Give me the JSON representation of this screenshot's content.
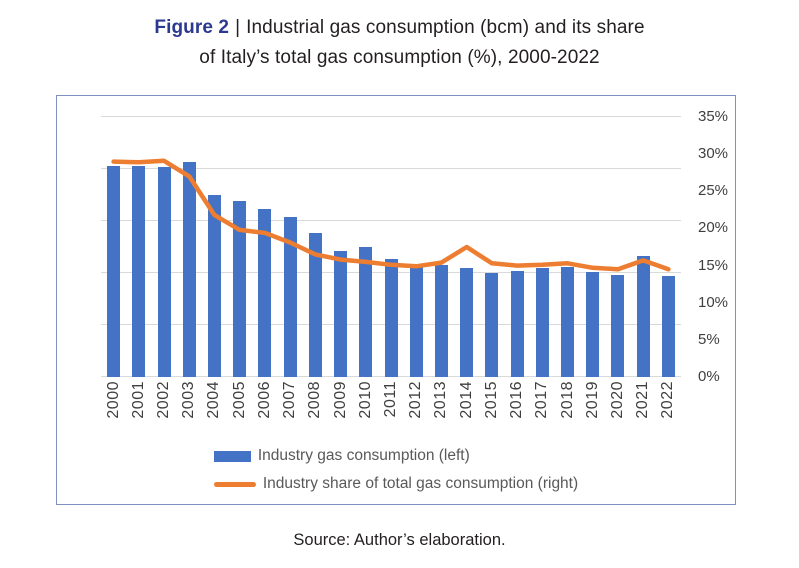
{
  "figure": {
    "label": "Figure 2",
    "separator": "|",
    "title_line1": "Industrial gas consumption (bcm) and its share",
    "title_line2": "of Italy’s total gas consumption (%), 2000-2022"
  },
  "source_note": "Source: Author’s elaboration.",
  "colors": {
    "bar": "#4472C4",
    "line": "#ED7D31",
    "figure_label": "#2B3990",
    "axis_text": "#3F3F3F",
    "legend_text": "#595959",
    "gridline": "#D9D9D9",
    "chart_border": "#8090C0"
  },
  "chart_data": {
    "type": "bar",
    "subtype": "combo-bar-line-dual-axis",
    "title": "Industrial gas consumption (bcm) and its share of Italy's total gas consumption (%), 2000-2022",
    "categories": [
      "2000",
      "2001",
      "2002",
      "2003",
      "2004",
      "2005",
      "2006",
      "2007",
      "2008",
      "2009",
      "2010",
      "2011",
      "2012",
      "2013",
      "2014",
      "2015",
      "2016",
      "2017",
      "2018",
      "2019",
      "2020",
      "2021",
      "2022"
    ],
    "series": [
      {
        "name": "Industry gas consumption (left)",
        "type": "bar",
        "axis": "left",
        "unit": "bcm",
        "values": [
          20.3,
          20.3,
          20.2,
          20.7,
          17.5,
          16.9,
          16.2,
          15.4,
          13.8,
          12.1,
          12.5,
          11.3,
          10.7,
          10.8,
          10.5,
          10.0,
          10.2,
          10.5,
          10.6,
          10.1,
          9.8,
          11.6,
          9.7
        ]
      },
      {
        "name": "Industry share of total gas consumption (right)",
        "type": "line",
        "axis": "right",
        "unit": "%",
        "values": [
          29.0,
          28.9,
          29.1,
          27.0,
          21.8,
          19.8,
          19.4,
          18.1,
          16.5,
          15.8,
          15.5,
          15.1,
          14.9,
          15.4,
          17.5,
          15.3,
          15.0,
          15.1,
          15.3,
          14.7,
          14.5,
          15.7,
          14.5
        ]
      }
    ],
    "left_axis": {
      "min": 0,
      "max": 25,
      "gridline_step": 5,
      "labels_visible": false
    },
    "right_axis": {
      "min": 0,
      "max": 35,
      "step": 5,
      "labels_visible": true,
      "ticks": [
        {
          "label": "35%",
          "value": 35
        },
        {
          "label": "30%",
          "value": 30
        },
        {
          "label": "25%",
          "value": 25
        },
        {
          "label": "20%",
          "value": 20
        },
        {
          "label": "15%",
          "value": 15
        },
        {
          "label": "10%",
          "value": 10
        },
        {
          "label": "5%",
          "value": 5
        },
        {
          "label": "0%",
          "value": 0
        }
      ]
    },
    "grid": "horizontal",
    "legend_position": "bottom"
  }
}
